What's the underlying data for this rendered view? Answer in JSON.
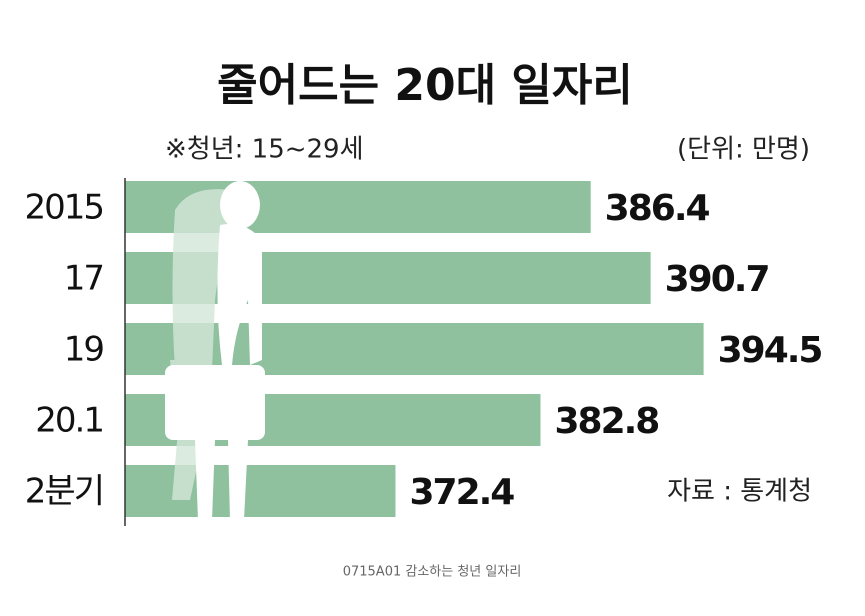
{
  "chart_data": {
    "type": "bar",
    "orientation": "horizontal",
    "title": "줄어드는 20대 일자리",
    "subtitle": "※청년: 15~29세",
    "unit_label": "(단위: 만명)",
    "source": "자료 : 통계청",
    "caption": "0715A01 감소하는 청년 일자리",
    "categories": [
      "2015",
      "17",
      "19",
      "20.1",
      "2분기"
    ],
    "values": [
      386.4,
      390.7,
      394.5,
      382.8,
      372.4
    ],
    "color": "#8fc19f",
    "xlim": [
      353,
      405
    ]
  }
}
